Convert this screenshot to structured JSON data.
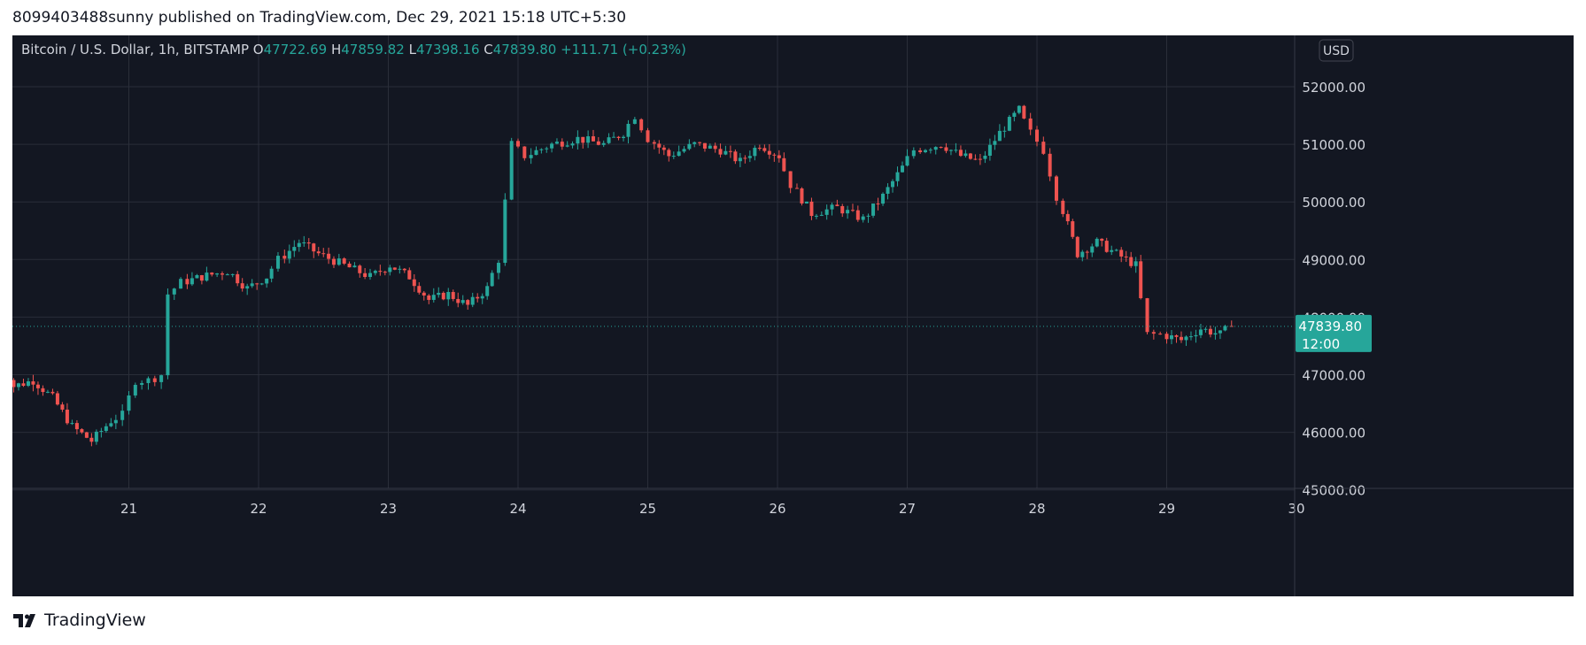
{
  "header": {
    "published_text": "8099403488sunny published on TradingView.com, Dec 29, 2021 15:18 UTC+5:30"
  },
  "footer": {
    "brand": "TradingView",
    "logo_icon": "tradingview-logo-icon"
  },
  "chart_data": {
    "type": "candlestick",
    "title": "Bitcoin / U.S. Dollar, 1h, BITSTAMP",
    "ohlc_legend": {
      "o_label": "O",
      "o_value": "47722.69",
      "h_label": "H",
      "h_value": "47859.82",
      "l_label": "L",
      "l_value": "47398.16",
      "c_label": "C",
      "c_value": "47839.80",
      "change": "+111.71 (+0.23%)"
    },
    "currency_button": "USD",
    "y_axis": {
      "range": [
        45000,
        52600
      ],
      "ticks": [
        "45000.00",
        "46000.00",
        "47000.00",
        "48000.00",
        "49000.00",
        "50000.00",
        "51000.00",
        "52000.00"
      ]
    },
    "x_axis": {
      "ticks": [
        "21",
        "22",
        "23",
        "24",
        "25",
        "26",
        "27",
        "28",
        "29",
        "30"
      ]
    },
    "last_price": {
      "value": 47839.8,
      "label": "47839.80",
      "countdown": "12:00"
    },
    "grid": true,
    "colors": {
      "background": "#131722",
      "grid": "#2a2e39",
      "up": "#26a69a",
      "down": "#ef5350",
      "axis_text": "#d1d4dc",
      "legend_text": "#d1d4dc",
      "legend_value": "#26a69a",
      "price_label_bg": "#26a69a"
    },
    "day_start_x": [
      20,
      21,
      22,
      23,
      24,
      25,
      26,
      27,
      28,
      29,
      30
    ],
    "close_points": [
      [
        20.0,
        47500
      ],
      [
        20.15,
        46800
      ],
      [
        20.3,
        46900
      ],
      [
        20.45,
        46600
      ],
      [
        20.6,
        46100
      ],
      [
        20.75,
        45850
      ],
      [
        20.9,
        46200
      ],
      [
        21.0,
        46300
      ],
      [
        21.1,
        46900
      ],
      [
        21.2,
        46900
      ],
      [
        21.3,
        47000
      ],
      [
        21.35,
        48400
      ],
      [
        21.45,
        48600
      ],
      [
        21.6,
        48700
      ],
      [
        21.8,
        48800
      ],
      [
        21.95,
        48500
      ],
      [
        22.1,
        48700
      ],
      [
        22.2,
        49000
      ],
      [
        22.35,
        49300
      ],
      [
        22.5,
        49100
      ],
      [
        22.7,
        48900
      ],
      [
        22.9,
        48700
      ],
      [
        23.05,
        48900
      ],
      [
        23.2,
        48700
      ],
      [
        23.35,
        48300
      ],
      [
        23.5,
        48400
      ],
      [
        23.65,
        48200
      ],
      [
        23.8,
        48500
      ],
      [
        23.9,
        49000
      ],
      [
        24.0,
        51000
      ],
      [
        24.1,
        50800
      ],
      [
        24.3,
        51000
      ],
      [
        24.5,
        51100
      ],
      [
        24.7,
        51000
      ],
      [
        24.85,
        51200
      ],
      [
        24.95,
        51500
      ],
      [
        25.05,
        51100
      ],
      [
        25.2,
        50800
      ],
      [
        25.4,
        51000
      ],
      [
        25.6,
        50900
      ],
      [
        25.75,
        50700
      ],
      [
        25.9,
        51000
      ],
      [
        26.05,
        50800
      ],
      [
        26.15,
        50300
      ],
      [
        26.3,
        49800
      ],
      [
        26.5,
        49900
      ],
      [
        26.7,
        49700
      ],
      [
        26.85,
        50100
      ],
      [
        27.0,
        50600
      ],
      [
        27.1,
        50900
      ],
      [
        27.3,
        51000
      ],
      [
        27.45,
        50800
      ],
      [
        27.6,
        50700
      ],
      [
        27.75,
        51200
      ],
      [
        27.9,
        51600
      ],
      [
        28.0,
        51200
      ],
      [
        28.1,
        50900
      ],
      [
        28.2,
        50100
      ],
      [
        28.35,
        49100
      ],
      [
        28.5,
        49300
      ],
      [
        28.65,
        49100
      ],
      [
        28.8,
        48900
      ],
      [
        28.9,
        47700
      ],
      [
        29.0,
        47700
      ],
      [
        29.15,
        47600
      ],
      [
        29.3,
        47800
      ],
      [
        29.45,
        47700
      ],
      [
        29.55,
        47839.8
      ]
    ]
  }
}
